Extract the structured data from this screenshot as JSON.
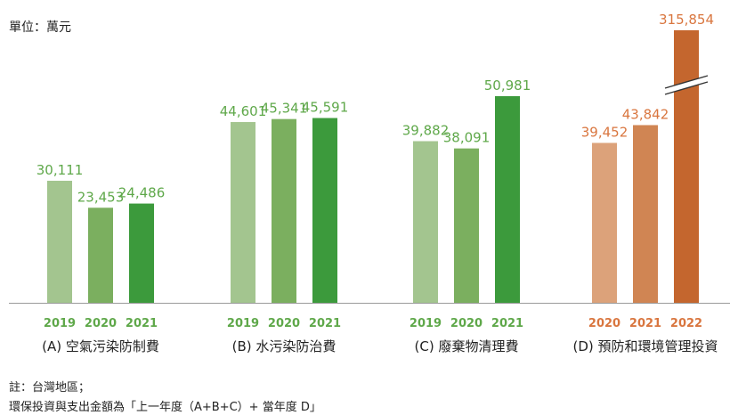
{
  "unit_label": "單位：萬元",
  "notes": [
    "註：台灣地區；",
    "環保投資與支出金額為「上一年度（A+B+C）+ 當年度 D」"
  ],
  "colors": {
    "green": [
      "#a3c58f",
      "#7baf5f",
      "#3c9a3c"
    ],
    "orange": [
      "#dca27a",
      "#d08553",
      "#c4662e"
    ],
    "green_text": "#5fa84a",
    "orange_text": "#d9763f",
    "axis": "#999999"
  },
  "chart_data": {
    "type": "bar",
    "ylim": [
      0,
      52000
    ],
    "axis_break": true,
    "groups": [
      {
        "label": "(A) 空氣污染防制費",
        "palette": "green",
        "bars": [
          {
            "year": "2019",
            "value": 30111,
            "value_label": "30,111"
          },
          {
            "year": "2020",
            "value": 23453,
            "value_label": "23,453"
          },
          {
            "year": "2021",
            "value": 24486,
            "value_label": "24,486"
          }
        ]
      },
      {
        "label": "(B) 水污染防治費",
        "palette": "green",
        "bars": [
          {
            "year": "2019",
            "value": 44601,
            "value_label": "44,601"
          },
          {
            "year": "2020",
            "value": 45341,
            "value_label": "45,341"
          },
          {
            "year": "2021",
            "value": 45591,
            "value_label": "45,591"
          }
        ]
      },
      {
        "label": "(C) 廢棄物清理費",
        "palette": "green",
        "bars": [
          {
            "year": "2019",
            "value": 39882,
            "value_label": "39,882"
          },
          {
            "year": "2020",
            "value": 38091,
            "value_label": "38,091"
          },
          {
            "year": "2021",
            "value": 50981,
            "value_label": "50,981"
          }
        ]
      },
      {
        "label": "(D) 預防和環境管理投資",
        "palette": "orange",
        "bars": [
          {
            "year": "2020",
            "value": 39452,
            "value_label": "39,452"
          },
          {
            "year": "2021",
            "value": 43842,
            "value_label": "43,842"
          },
          {
            "year": "2022",
            "value": 315854,
            "value_label": "315,854",
            "broken": true
          }
        ]
      }
    ]
  }
}
